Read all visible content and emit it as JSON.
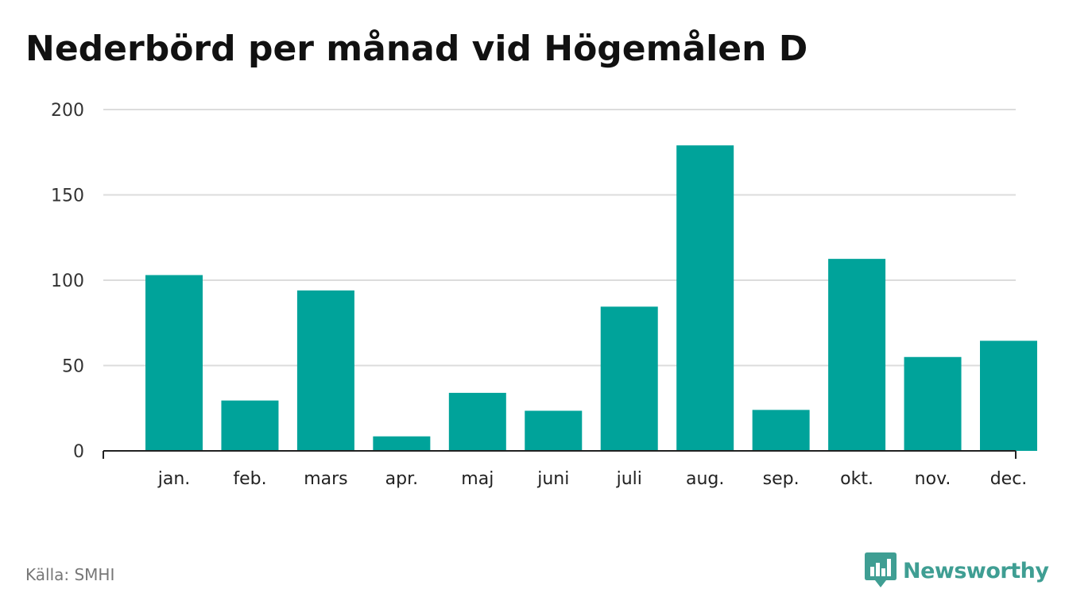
{
  "title": "Nederbörd per månad vid Högemålen D",
  "source": "Källa: SMHI",
  "brand": "Newsworthy",
  "colors": {
    "bar": "#00a39a",
    "grid": "#dcdcdc",
    "axis": "#222222",
    "title": "#111111",
    "brand": "#3f9e93"
  },
  "chart_data": {
    "type": "bar",
    "title": "Nederbörd per månad vid Högemålen D",
    "xlabel": "",
    "ylabel": "",
    "categories": [
      "jan.",
      "feb.",
      "mars",
      "apr.",
      "maj",
      "juni",
      "juli",
      "aug.",
      "sep.",
      "okt.",
      "nov.",
      "dec."
    ],
    "values": [
      103,
      29.5,
      94,
      8.5,
      34,
      23.5,
      84.5,
      179,
      24,
      112.5,
      55,
      64.5
    ],
    "ylim": [
      0,
      200
    ],
    "yticks": [
      0,
      50,
      100,
      150,
      200
    ],
    "grid": true,
    "legend": "none"
  }
}
